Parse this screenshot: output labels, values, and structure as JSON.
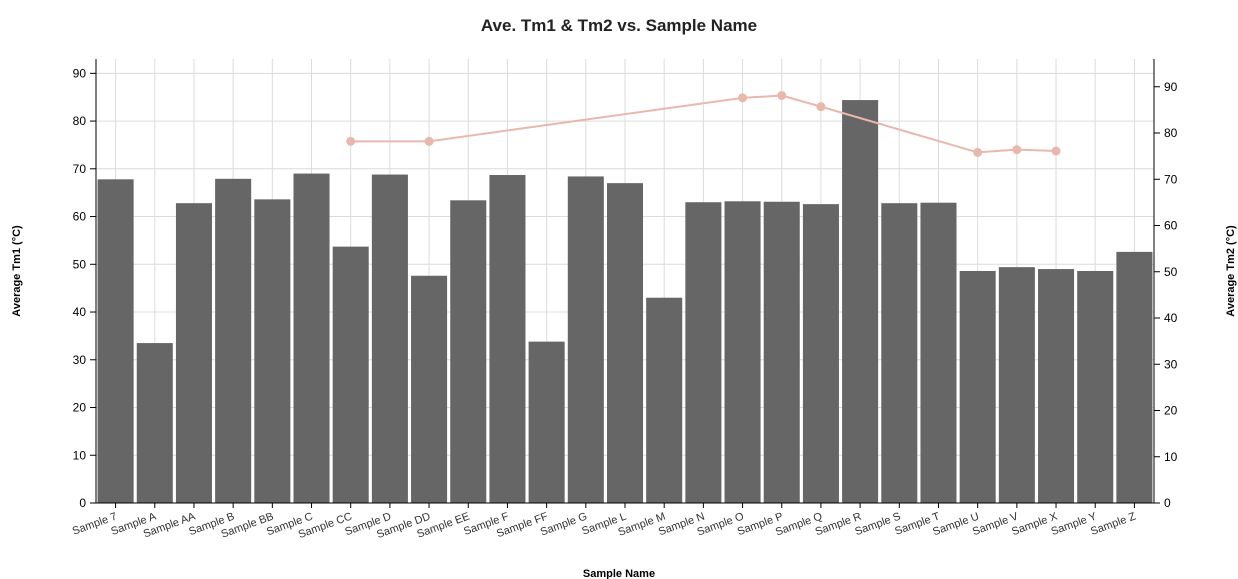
{
  "chart_data": {
    "type": "bar",
    "title": "Ave. Tm1 & Tm2 vs. Sample Name",
    "xlabel": "Sample Name",
    "ylabel": "Average Tm1 (°C)",
    "y2label": "Average Tm2 (°C)",
    "ylim": [
      0,
      93
    ],
    "y2lim": [
      0,
      96
    ],
    "yticks": [
      0,
      10,
      20,
      30,
      40,
      50,
      60,
      70,
      80,
      90
    ],
    "y2ticks": [
      0,
      10,
      20,
      30,
      40,
      50,
      60,
      70,
      80,
      90
    ],
    "grid": true,
    "categories": [
      "Sample 7",
      "Sample A",
      "Sample AA",
      "Sample B",
      "Sample BB",
      "Sample C",
      "Sample CC",
      "Sample D",
      "Sample DD",
      "Sample EE",
      "Sample F",
      "Sample FF",
      "Sample G",
      "Sample L",
      "Sample M",
      "Sample N",
      "Sample O",
      "Sample P",
      "Sample Q",
      "Sample R",
      "Sample S",
      "Sample T",
      "Sample U",
      "Sample V",
      "Sample X",
      "Sample Y",
      "Sample Z"
    ],
    "series": [
      {
        "type": "bar",
        "axis": "left",
        "color": "#666666",
        "values": [
          67.8,
          33.5,
          62.8,
          67.9,
          63.6,
          69.0,
          53.7,
          68.8,
          47.6,
          63.4,
          68.7,
          33.8,
          68.4,
          67.0,
          43.0,
          63.0,
          63.2,
          63.1,
          62.6,
          84.4,
          62.8,
          62.9,
          48.6,
          49.4,
          49.0,
          48.6,
          52.6
        ]
      },
      {
        "type": "line",
        "axis": "right",
        "color": "#e8b8ac",
        "values": [
          null,
          null,
          null,
          null,
          null,
          null,
          78.2,
          null,
          78.2,
          null,
          null,
          null,
          null,
          null,
          null,
          null,
          87.6,
          88.1,
          85.7,
          null,
          null,
          null,
          75.8,
          76.4,
          76.1,
          null,
          null
        ]
      }
    ]
  }
}
